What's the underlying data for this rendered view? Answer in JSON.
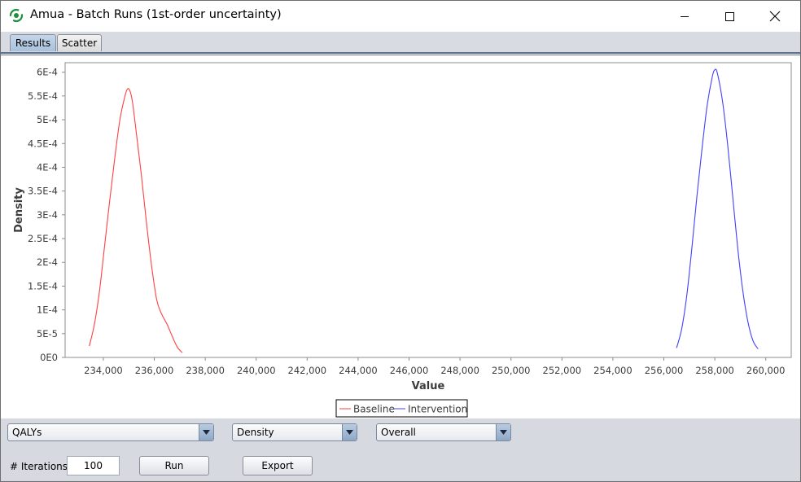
{
  "window": {
    "title": "Amua - Batch Runs (1st-order uncertainty)"
  },
  "tabs": [
    {
      "label": "Results",
      "active": true
    },
    {
      "label": "Scatter",
      "active": false
    }
  ],
  "chart_data": {
    "type": "line",
    "title": "",
    "xlabel": "Value",
    "ylabel": "Density",
    "xlim": [
      232500,
      261000
    ],
    "ylim": [
      0,
      0.00062
    ],
    "x_ticks": [
      "234,000",
      "236,000",
      "238,000",
      "240,000",
      "242,000",
      "244,000",
      "246,000",
      "248,000",
      "250,000",
      "252,000",
      "254,000",
      "256,000",
      "258,000",
      "260,000"
    ],
    "y_ticks": [
      "0E0",
      "5E-5",
      "1E-4",
      "1.5E-4",
      "2E-4",
      "2.5E-4",
      "3E-4",
      "3.5E-4",
      "4E-4",
      "4.5E-4",
      "5E-4",
      "5.5E-4",
      "6E-4"
    ],
    "legend_position": "bottom",
    "grid": false,
    "series": [
      {
        "name": "Baseline",
        "color": "#ff4040",
        "x": [
          233450,
          233650,
          233850,
          234050,
          234250,
          234450,
          234650,
          234850,
          234950,
          235050,
          235150,
          235300,
          235500,
          235700,
          235900,
          236100,
          236300,
          236500,
          236700,
          236900,
          237100
        ],
        "y": [
          2.4e-05,
          7e-05,
          0.00014,
          0.000235,
          0.00033,
          0.00042,
          0.0005,
          0.00055,
          0.000565,
          0.00056,
          0.000535,
          0.00047,
          0.00038,
          0.00028,
          0.00019,
          0.00012,
          9e-05,
          7e-05,
          4.5e-05,
          2.2e-05,
          1e-05
        ]
      },
      {
        "name": "Intervention",
        "color": "#4040ff",
        "x": [
          256500,
          256700,
          256900,
          257100,
          257300,
          257500,
          257700,
          257900,
          258000,
          258100,
          258300,
          258500,
          258700,
          258900,
          259100,
          259300,
          259500,
          259700
        ],
        "y": [
          2e-05,
          6e-05,
          0.00013,
          0.00023,
          0.00034,
          0.00044,
          0.00053,
          0.00059,
          0.000605,
          0.000598,
          0.00054,
          0.00045,
          0.00034,
          0.00023,
          0.00014,
          7.5e-05,
          3.5e-05,
          1.8e-05
        ]
      }
    ]
  },
  "controls": {
    "outcome_select": "QALYs",
    "display_select": "Density",
    "group_select": "Overall",
    "iterations_label": "# Iterations:",
    "iterations_value": "100",
    "run_label": "Run",
    "export_label": "Export"
  }
}
